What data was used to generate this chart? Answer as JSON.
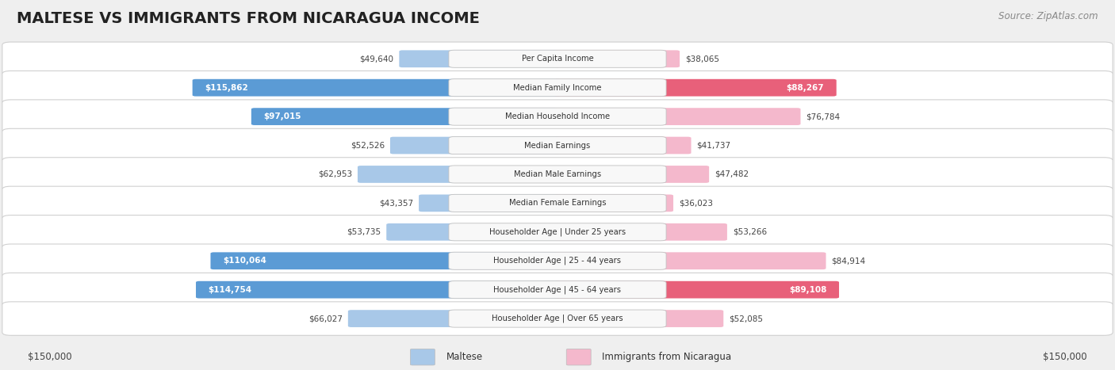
{
  "title": "MALTESE VS IMMIGRANTS FROM NICARAGUA INCOME",
  "source": "Source: ZipAtlas.com",
  "categories": [
    "Per Capita Income",
    "Median Family Income",
    "Median Household Income",
    "Median Earnings",
    "Median Male Earnings",
    "Median Female Earnings",
    "Householder Age | Under 25 years",
    "Householder Age | 25 - 44 years",
    "Householder Age | 45 - 64 years",
    "Householder Age | Over 65 years"
  ],
  "maltese_values": [
    49640,
    115862,
    97015,
    52526,
    62953,
    43357,
    53735,
    110064,
    114754,
    66027
  ],
  "nicaragua_values": [
    38065,
    88267,
    76784,
    41737,
    47482,
    36023,
    53266,
    84914,
    89108,
    52085
  ],
  "maltese_color_light": "#a8c8e8",
  "maltese_color_dark": "#5b9bd5",
  "nicaragua_color_light": "#f4b8cc",
  "nicaragua_color_dark": "#e8607a",
  "max_value": 150000,
  "background_color": "#efefef",
  "row_bg_color": "#ffffff",
  "legend_maltese": "Maltese",
  "legend_nicaragua": "Immigrants from Nicaragua",
  "label_inside_threshold": 85000
}
